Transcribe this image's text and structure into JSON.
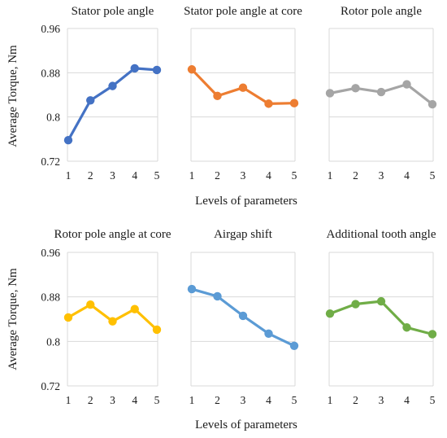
{
  "figure": {
    "ylabel": "Average Torque, Nm",
    "xlabel": "Levels of parameters"
  },
  "chart_data": [
    {
      "type": "line",
      "title": "Stator pole angle",
      "color": "#4472C4",
      "x": [
        1,
        2,
        3,
        4,
        5
      ],
      "y": [
        0.758,
        0.83,
        0.856,
        0.888,
        0.885
      ],
      "ylim": [
        0.72,
        0.96
      ],
      "yticks": [
        "0.72",
        "0.8",
        "0.88",
        "0.96"
      ],
      "grid": true
    },
    {
      "type": "line",
      "title": "Stator pole angle at core",
      "color": "#ED7D31",
      "x": [
        1,
        2,
        3,
        4,
        5
      ],
      "y": [
        0.886,
        0.838,
        0.853,
        0.824,
        0.825
      ],
      "ylim": [
        0.72,
        0.96
      ],
      "yticks": [
        "0.72",
        "0.8",
        "0.88",
        "0.96"
      ],
      "grid": true
    },
    {
      "type": "line",
      "title": "Rotor pole angle",
      "color": "#A5A5A5",
      "x": [
        1,
        2,
        3,
        4,
        5
      ],
      "y": [
        0.843,
        0.852,
        0.845,
        0.859,
        0.823
      ],
      "ylim": [
        0.72,
        0.96
      ],
      "yticks": [
        "0.72",
        "0.8",
        "0.88",
        "0.96"
      ],
      "grid": true
    },
    {
      "type": "line",
      "title": "Rotor pole angle at core",
      "color": "#FFC000",
      "x": [
        1,
        2,
        3,
        4,
        5
      ],
      "y": [
        0.843,
        0.866,
        0.836,
        0.858,
        0.821
      ],
      "ylim": [
        0.72,
        0.96
      ],
      "yticks": [
        "0.72",
        "0.8",
        "0.88",
        "0.96"
      ],
      "grid": true
    },
    {
      "type": "line",
      "title": "Airgap shift",
      "color": "#5B9BD5",
      "x": [
        1,
        2,
        3,
        4,
        5
      ],
      "y": [
        0.894,
        0.881,
        0.846,
        0.814,
        0.792
      ],
      "ylim": [
        0.72,
        0.96
      ],
      "yticks": [
        "0.72",
        "0.8",
        "0.88",
        "0.96"
      ],
      "grid": true
    },
    {
      "type": "line",
      "title": "Additional tooth angle",
      "color": "#70AD47",
      "x": [
        1,
        2,
        3,
        4,
        5
      ],
      "y": [
        0.85,
        0.867,
        0.872,
        0.825,
        0.813
      ],
      "ylim": [
        0.72,
        0.96
      ],
      "yticks": [
        "0.72",
        "0.8",
        "0.88",
        "0.96"
      ],
      "grid": true
    }
  ]
}
